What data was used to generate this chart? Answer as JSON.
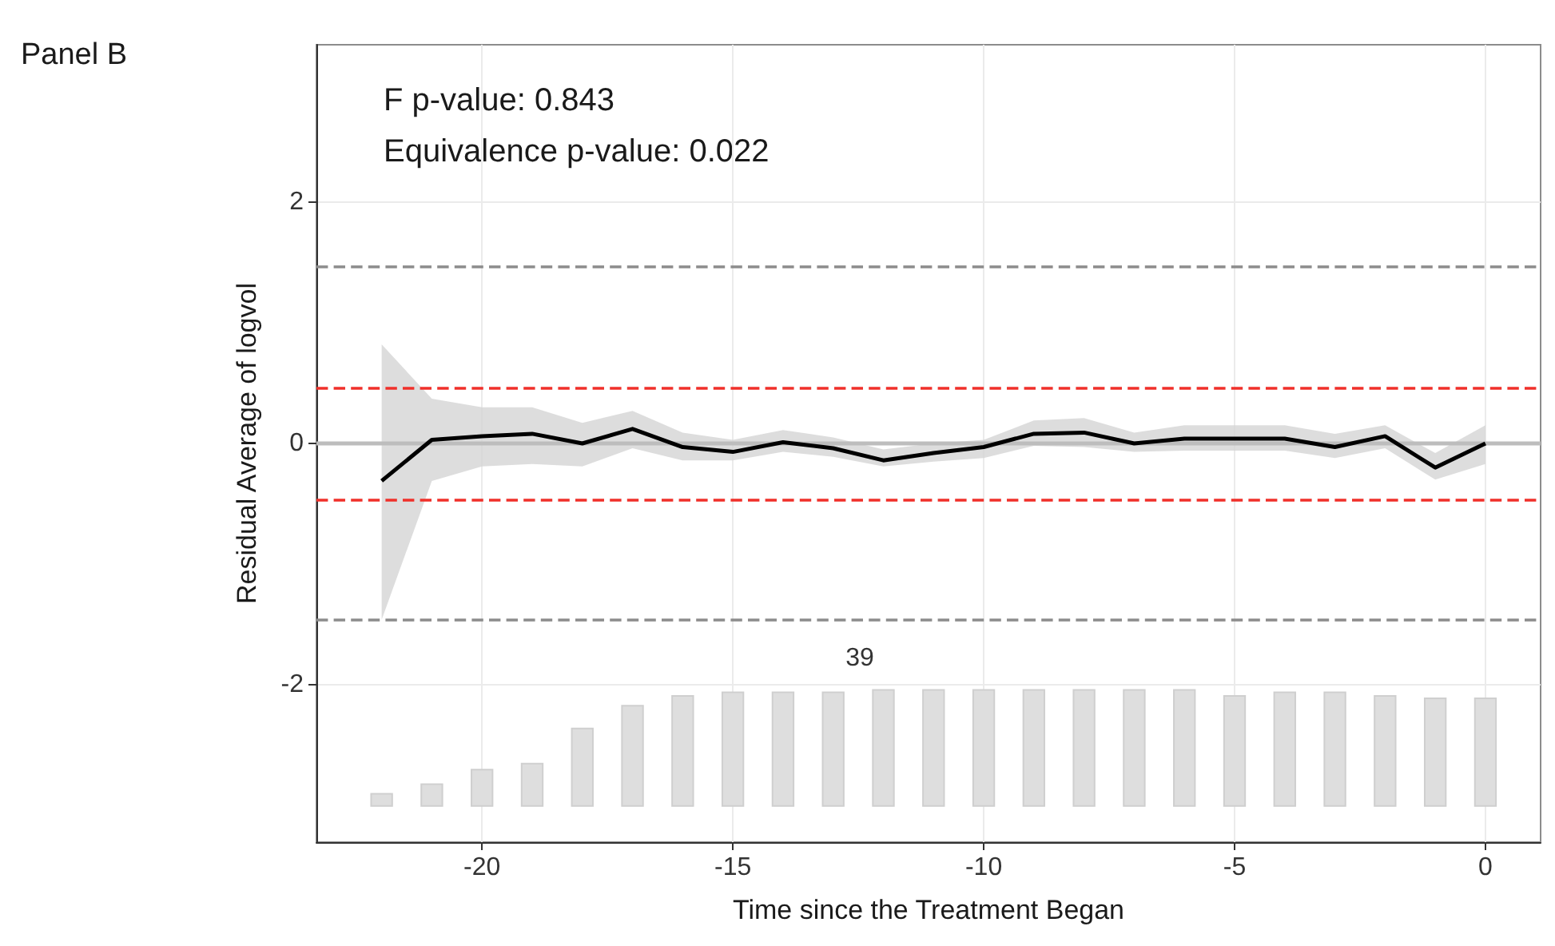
{
  "chart_data": {
    "type": "line",
    "title": "Panel B",
    "xlabel": "Time since the Treatment Began",
    "ylabel": "Residual Average of logvol",
    "x": [
      -22,
      -21,
      -20,
      -19,
      -18,
      -17,
      -16,
      -15,
      -14,
      -13,
      -12,
      -11,
      -10,
      -9,
      -8,
      -7,
      -6,
      -5,
      -4,
      -3,
      -2,
      -1,
      0
    ],
    "series": [
      {
        "color": "#000000",
        "values": [
          -0.31,
          0.03,
          0.06,
          0.08,
          0.0,
          0.12,
          -0.03,
          -0.07,
          0.01,
          -0.04,
          -0.14,
          -0.08,
          -0.03,
          0.08,
          0.09,
          0.0,
          0.04,
          0.04,
          0.04,
          -0.03,
          0.06,
          -0.2,
          0.0
        ],
        "lower": [
          -1.46,
          -0.31,
          -0.19,
          -0.17,
          -0.19,
          -0.04,
          -0.14,
          -0.14,
          -0.07,
          -0.11,
          -0.19,
          -0.15,
          -0.12,
          -0.02,
          -0.03,
          -0.07,
          -0.06,
          -0.06,
          -0.06,
          -0.12,
          -0.04,
          -0.3,
          -0.17
        ],
        "upper": [
          0.82,
          0.37,
          0.3,
          0.3,
          0.17,
          0.27,
          0.09,
          0.03,
          0.11,
          0.05,
          -0.05,
          0.0,
          0.03,
          0.19,
          0.21,
          0.09,
          0.15,
          0.15,
          0.15,
          0.08,
          0.15,
          -0.08,
          0.15
        ]
      },
      {
        "type": "bar",
        "color": "#dedede",
        "base": [
          -3,
          -3,
          -3,
          -3,
          -3,
          -3,
          -3,
          -3,
          -3,
          -3,
          -3,
          -3,
          -3,
          -3,
          -3,
          -3,
          -3,
          -3,
          -3,
          -3,
          -3,
          -3,
          -3
        ],
        "values": [
          0.1,
          0.18,
          0.3,
          0.35,
          0.64,
          0.83,
          0.91,
          0.94,
          0.94,
          0.94,
          0.96,
          0.96,
          0.96,
          0.96,
          0.96,
          0.96,
          0.96,
          0.91,
          0.94,
          0.94,
          0.91,
          0.89,
          0.89
        ]
      }
    ],
    "xlim": [
      -23.3,
      1.1
    ],
    "xticks": [
      -20,
      -15,
      -10,
      -5,
      0
    ],
    "ylim": [
      -3.3,
      3.3
    ],
    "yticks": [
      -2,
      0,
      2
    ],
    "grid": true,
    "marker": "none",
    "ref_lines": [
      {
        "axis": "y",
        "value": 0,
        "color": "#bdbdbd",
        "line_style": "solid"
      },
      {
        "axis": "y",
        "value": 0.46,
        "color": "#f0302a",
        "line_style": "dashed"
      },
      {
        "axis": "y",
        "value": -0.46,
        "color": "#f0302a",
        "line_style": "dashed"
      },
      {
        "axis": "y",
        "value": 1.46,
        "color": "#8c8c8c",
        "line_style": "dashed"
      },
      {
        "axis": "y",
        "value": -1.46,
        "color": "#8c8c8c",
        "line_style": "dashed"
      }
    ],
    "annotations": [
      "F p-value: 0.843",
      "Equivalence p-value: 0.022",
      "39"
    ]
  }
}
